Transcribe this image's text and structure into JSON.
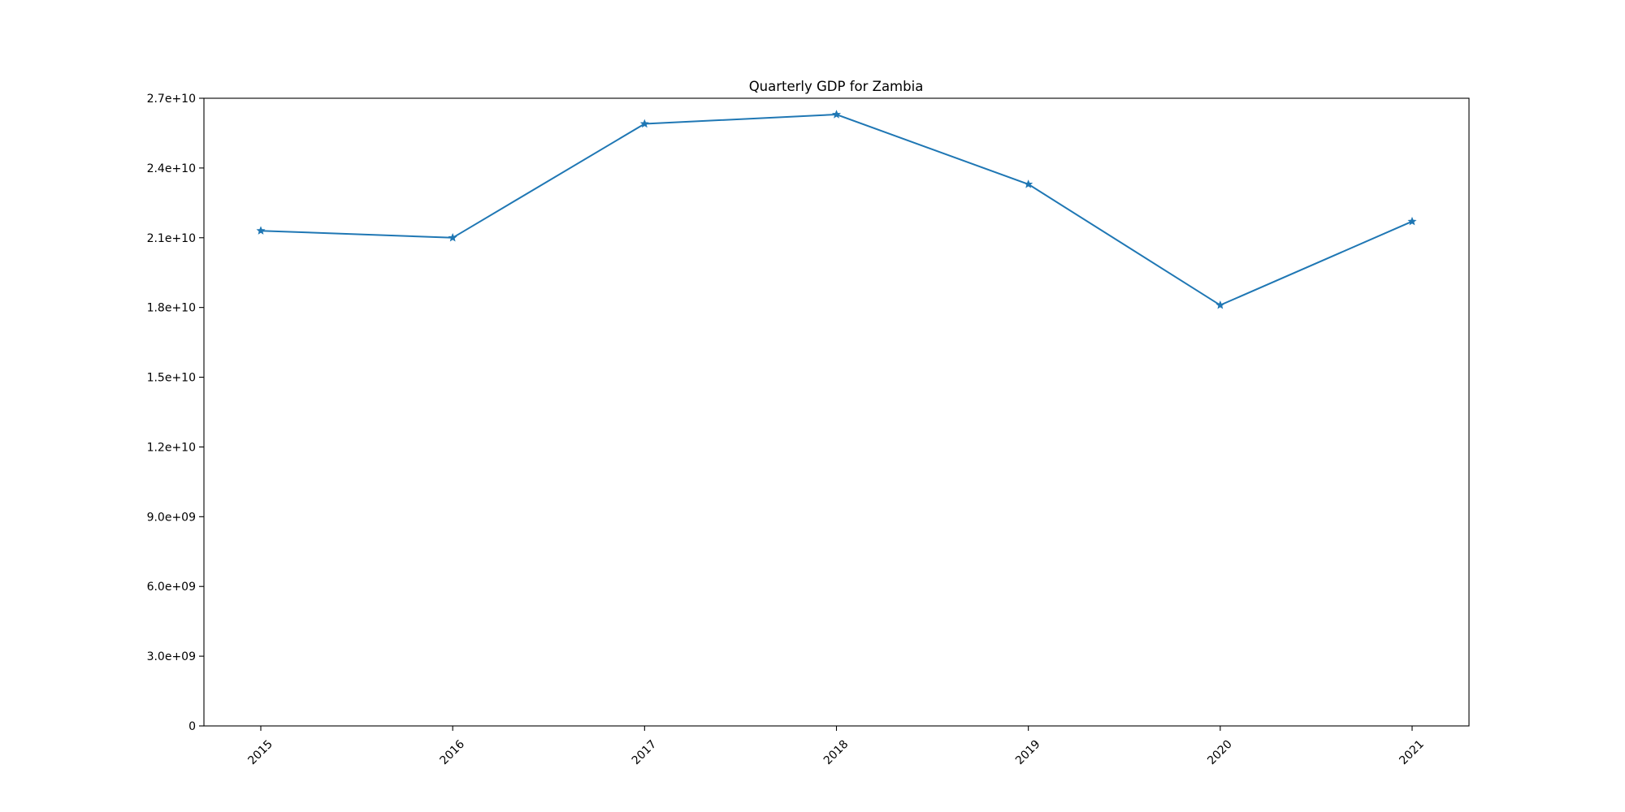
{
  "chart_data": {
    "type": "line",
    "title": "Quarterly GDP for Zambia",
    "xlabel": "",
    "ylabel": "",
    "x": [
      "2015",
      "2016",
      "2017",
      "2018",
      "2019",
      "2020",
      "2021"
    ],
    "series": [
      {
        "values": [
          21300000000,
          21000000000,
          25900000000,
          26300000000,
          23300000000,
          18100000000,
          21700000000
        ],
        "color": "#1f77b4",
        "marker": "star"
      }
    ],
    "ylim": [
      0,
      27000000000
    ],
    "yticks": [
      0,
      3000000000,
      6000000000,
      9000000000,
      12000000000,
      15000000000,
      18000000000,
      21000000000,
      24000000000,
      27000000000
    ],
    "ytick_labels": [
      "0",
      "3.0e+09",
      "6.0e+09",
      "9.0e+09",
      "1.2e+10",
      "1.5e+10",
      "1.8e+10",
      "2.1e+10",
      "2.4e+10",
      "2.7e+10"
    ],
    "xtick_rotation": 45,
    "grid": false,
    "legend": "none"
  }
}
